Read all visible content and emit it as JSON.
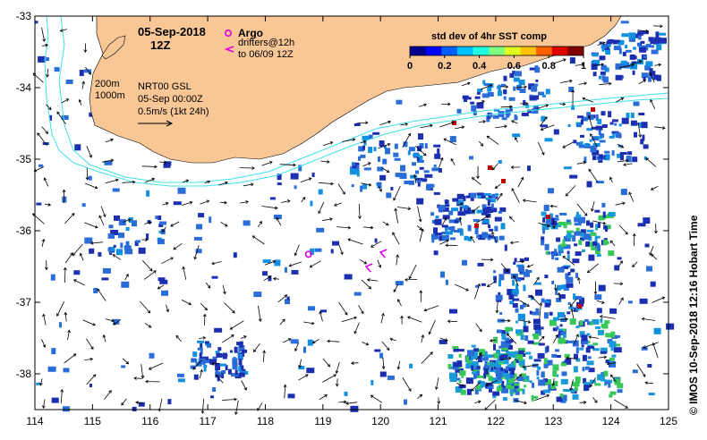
{
  "map": {
    "date_title": "05-Sep-2018",
    "time_title": "12Z",
    "argo_label": "Argo",
    "drifters_label": "drifters@12h",
    "drifters_range": "to 06/09 12Z",
    "depth_200": "200m",
    "depth_1000": "1000m",
    "product": "NRT00 GSL",
    "product_time": "05-Sep 00:00Z",
    "velocity_scale": "0.5m/s (1kt 24h)",
    "credit": "© IMOS 10-Sep-2018 12:16 Hobart Time",
    "x_axis": {
      "ticks": [
        114,
        115,
        116,
        117,
        118,
        119,
        120,
        121,
        122,
        123,
        124,
        125
      ],
      "labels": [
        "114",
        "115",
        "116",
        "117",
        "118",
        "119",
        "120",
        "121",
        "122",
        "123",
        "124",
        "125"
      ]
    },
    "y_axis": {
      "ticks": [
        -33,
        -34,
        -35,
        -36,
        -37,
        -38
      ],
      "labels": [
        "-33",
        "-34",
        "-35",
        "-36",
        "-37",
        "-38"
      ]
    },
    "lon_range": [
      114,
      125
    ],
    "lat_range": [
      -38.5,
      -33
    ]
  },
  "colorbar": {
    "title": "std dev of 4hr SST comp",
    "ticks": [
      0,
      0.2,
      0.4,
      0.6,
      0.8,
      1
    ],
    "labels": [
      "0",
      "0.2",
      "0.4",
      "0.6",
      "0.8",
      "1"
    ],
    "colors": [
      "#00008f",
      "#0000ff",
      "#0060ff",
      "#00c0ff",
      "#20ffdf",
      "#80ff80",
      "#e0ff20",
      "#ffc000",
      "#ff6000",
      "#e00000",
      "#800000"
    ]
  },
  "colors": {
    "land": "#f9c696",
    "sst_low": "#1c2fb0",
    "sst_mid": "#2a6cd8",
    "sst_hi": "#38c85a",
    "contour": "#40e0e8",
    "argo": "#e000e0",
    "drifter": "#e000e0",
    "arrow": "#000000"
  },
  "argo_floats": [
    {
      "lon": 118.75,
      "lat": -36.33
    }
  ],
  "drifters": [
    {
      "lon": 119.75,
      "lat": -36.5
    },
    {
      "lon": 120.0,
      "lat": -36.3
    }
  ]
}
